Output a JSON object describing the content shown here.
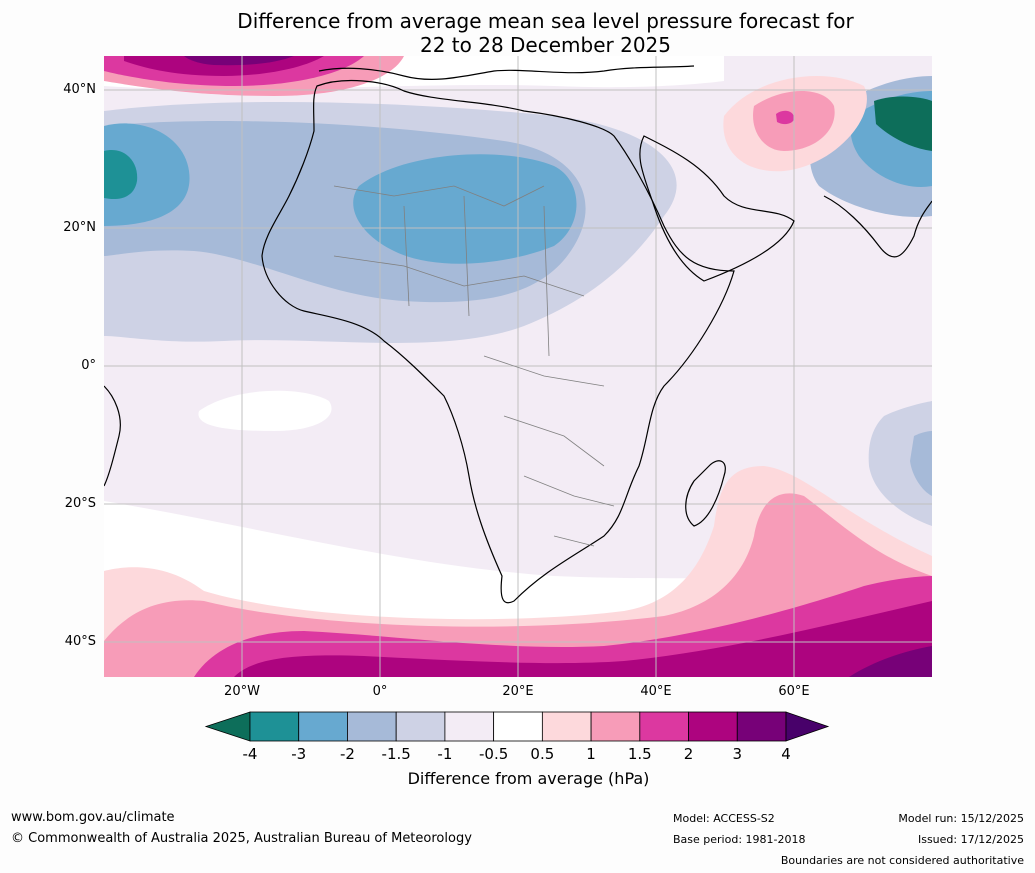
{
  "title_line1": "Difference from average mean sea level pressure forecast for",
  "title_line2": "22 to 28 December 2025",
  "lat_labels": [
    "40°N",
    "20°N",
    "0°",
    "20°S",
    "40°S"
  ],
  "lon_labels": [
    "20°W",
    "0°",
    "20°E",
    "40°E",
    "60°E"
  ],
  "colorbar": {
    "ticks": [
      "-4",
      "-3",
      "-2",
      "-1.5",
      "-1",
      "-0.5",
      "0.5",
      "1",
      "1.5",
      "2",
      "3",
      "4"
    ],
    "colors": [
      "#0d6e5a",
      "#1e9196",
      "#67a9d0",
      "#a6bad8",
      "#ced2e5",
      "#f3ecf5",
      "#ffffff",
      "#fdd9dc",
      "#f79cb8",
      "#dc38a0",
      "#ad047f",
      "#770178",
      "#48016a"
    ],
    "label": "Difference from average (hPa)"
  },
  "footer": {
    "url": "www.bom.gov.au/climate",
    "copyright": "© Commonwealth of Australia 2025, Australian Bureau of Meteorology",
    "model": "Model: ACCESS-S2",
    "base_period": "Base period: 1981-2018",
    "model_run": "Model run: 15/12/2025",
    "issued": "Issued: 17/12/2025",
    "disclaimer": "Boundaries are not considered authoritative"
  }
}
